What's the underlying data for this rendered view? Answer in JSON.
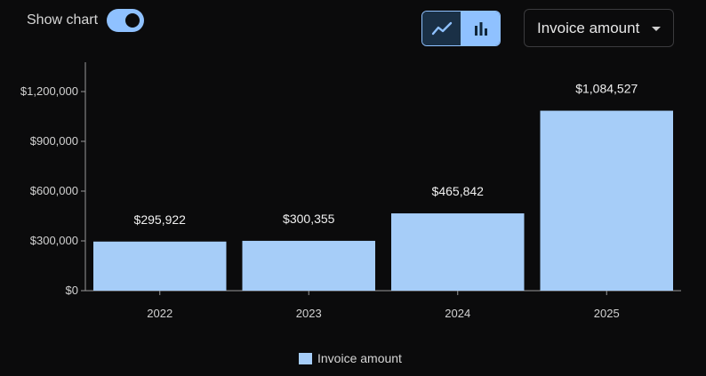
{
  "controls": {
    "show_chart_label": "Show chart",
    "show_chart_on": true,
    "chart_type_selected": "bar",
    "metric_select_value": "Invoice amount"
  },
  "icons": {
    "line": "line-chart-icon",
    "bar": "bar-chart-icon",
    "caret": "chevron-down-icon"
  },
  "colors": {
    "bar": "#a6cdf8",
    "accent": "#8fc1ff",
    "background": "#0b0b0c",
    "axis": "#9a9a9a"
  },
  "chart_data": {
    "type": "bar",
    "categories": [
      "2022",
      "2023",
      "2024",
      "2025"
    ],
    "series": [
      {
        "name": "Invoice amount",
        "values": [
          295922,
          300355,
          465842,
          1084527
        ],
        "labels": [
          "$295,922",
          "$300,355",
          "$465,842",
          "$1,084,527"
        ]
      }
    ],
    "y_ticks": [
      {
        "value": 0,
        "label": "$0"
      },
      {
        "value": 300000,
        "label": "$300,000"
      },
      {
        "value": 600000,
        "label": "$600,000"
      },
      {
        "value": 900000,
        "label": "$900,000"
      },
      {
        "value": 1200000,
        "label": "$1,200,000"
      }
    ],
    "ylim": [
      0,
      1350000
    ],
    "grid": false,
    "legend_position": "bottom",
    "title": "",
    "xlabel": "",
    "ylabel": ""
  }
}
